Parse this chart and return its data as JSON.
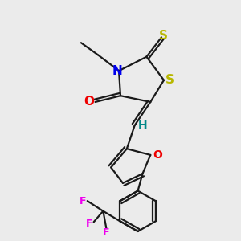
{
  "bg": "#ebebeb",
  "lw": 1.6,
  "fig_width": 3.0,
  "fig_height": 3.0,
  "dpi": 100,
  "colors": {
    "bond": "#1a1a1a",
    "S": "#b8b800",
    "N": "#0000ee",
    "O": "#ee0000",
    "H": "#008888",
    "F": "#ee00ee"
  }
}
